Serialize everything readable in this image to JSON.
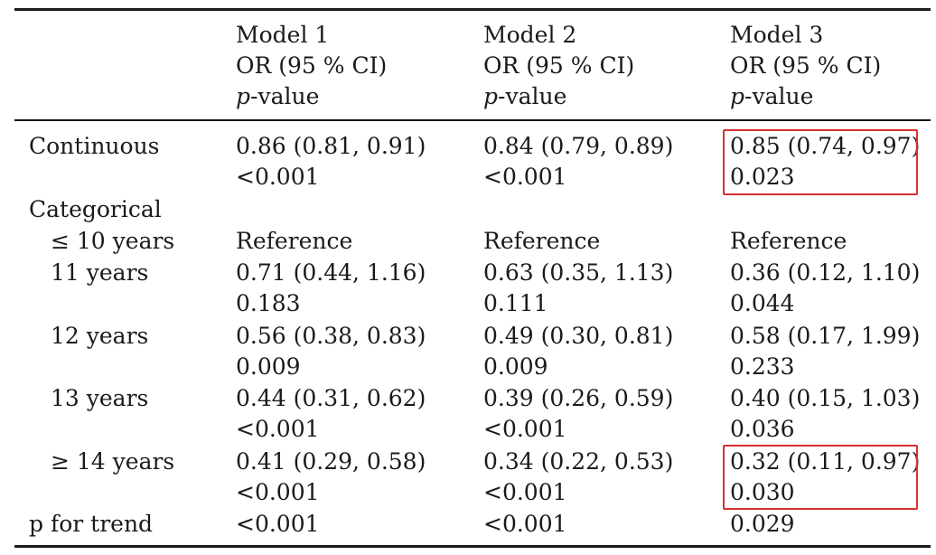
{
  "header": {
    "model1": {
      "name": "Model 1",
      "stat": "OR (95 % CI)",
      "p_italic": "p",
      "p_rest": "-value"
    },
    "model2": {
      "name": "Model 2",
      "stat": "OR (95 % CI)",
      "p_italic": "p",
      "p_rest": "-value"
    },
    "model3": {
      "name": "Model 3",
      "stat": "OR (95 % CI)",
      "p_italic": "p",
      "p_rest": "-value"
    }
  },
  "rows": {
    "continuous": {
      "label": "Continuous",
      "m1_or": "0.86 (0.81, 0.91)",
      "m1_p": "<0.001",
      "m2_or": "0.84 (0.79, 0.89)",
      "m2_p": "<0.001",
      "m3_or": "0.85 (0.74, 0.97)",
      "m3_p": "0.023"
    },
    "categorical": {
      "label": "Categorical"
    },
    "le10": {
      "label": "≤ 10 years",
      "m1": "Reference",
      "m2": "Reference",
      "m3": "Reference"
    },
    "y11": {
      "label": "11 years",
      "m1_or": "0.71 (0.44, 1.16)",
      "m1_p": "0.183",
      "m2_or": "0.63 (0.35, 1.13)",
      "m2_p": "0.111",
      "m3_or": "0.36 (0.12, 1.10)",
      "m3_p": "0.044"
    },
    "y12": {
      "label": "12 years",
      "m1_or": "0.56 (0.38, 0.83)",
      "m1_p": "0.009",
      "m2_or": "0.49 (0.30, 0.81)",
      "m2_p": "0.009",
      "m3_or": "0.58 (0.17, 1.99)",
      "m3_p": "0.233"
    },
    "y13": {
      "label": "13 years",
      "m1_or": "0.44 (0.31, 0.62)",
      "m1_p": "<0.001",
      "m2_or": "0.39 (0.26, 0.59)",
      "m2_p": "<0.001",
      "m3_or": "0.40 (0.15, 1.03)",
      "m3_p": "0.036"
    },
    "ge14": {
      "label": "≥ 14 years",
      "m1_or": "0.41 (0.29, 0.58)",
      "m1_p": "<0.001",
      "m2_or": "0.34 (0.22, 0.53)",
      "m2_p": "<0.001",
      "m3_or": "0.32 (0.11, 0.97)",
      "m3_p": "0.030"
    },
    "trend": {
      "label": "p for trend",
      "m1": "<0.001",
      "m2": "<0.001",
      "m3": "0.029"
    }
  },
  "highlight_color": "#d93030"
}
